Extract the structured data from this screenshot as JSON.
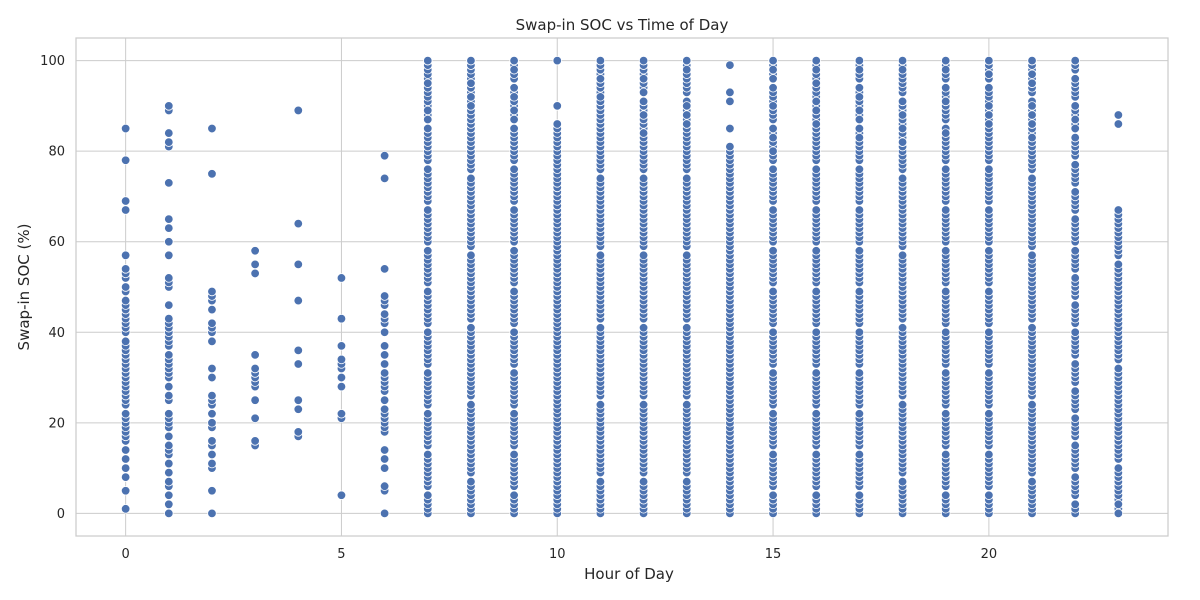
{
  "chart_data": {
    "type": "scatter",
    "title": "Swap-in SOC vs Time of Day",
    "xlabel": "Hour of Day",
    "ylabel": "Swap-in SOC (%)",
    "xlim": [
      -1.15,
      24.15
    ],
    "ylim": [
      -5,
      105
    ],
    "xticks": [
      0,
      5,
      10,
      15,
      20
    ],
    "yticks": [
      0,
      20,
      40,
      60,
      80,
      100
    ],
    "grid": true,
    "marker_color": "#4c72b0",
    "marker_edge": "#ffffff",
    "points_by_hour": [
      {
        "hour": 0,
        "soc": [
          1,
          5,
          8,
          10,
          12,
          14,
          16,
          17,
          18,
          19,
          20,
          21,
          22,
          24,
          25,
          26,
          27,
          28,
          29,
          30,
          31,
          32,
          33,
          34,
          35,
          36,
          37,
          38,
          40,
          41,
          42,
          43,
          44,
          45,
          46,
          47,
          49,
          50,
          52,
          53,
          54,
          57,
          67,
          69,
          78,
          85
        ]
      },
      {
        "hour": 1,
        "soc": [
          0,
          2,
          4,
          6,
          7,
          9,
          11,
          13,
          14,
          15,
          17,
          19,
          20,
          21,
          22,
          25,
          26,
          28,
          30,
          31,
          32,
          33,
          34,
          35,
          37,
          38,
          39,
          40,
          41,
          42,
          43,
          46,
          50,
          51,
          52,
          57,
          60,
          63,
          65,
          73,
          81,
          82,
          84,
          89,
          90
        ]
      },
      {
        "hour": 2,
        "soc": [
          0,
          5,
          10,
          11,
          13,
          15,
          16,
          19,
          20,
          22,
          24,
          25,
          26,
          30,
          32,
          38,
          40,
          41,
          42,
          45,
          47,
          48,
          49,
          75,
          85
        ]
      },
      {
        "hour": 3,
        "soc": [
          15,
          16,
          21,
          25,
          28,
          29,
          30,
          31,
          32,
          35,
          53,
          55,
          58
        ]
      },
      {
        "hour": 4,
        "soc": [
          17,
          18,
          23,
          25,
          33,
          36,
          47,
          55,
          64,
          89
        ]
      },
      {
        "hour": 5,
        "soc": [
          4,
          21,
          22,
          28,
          30,
          32,
          33,
          34,
          37,
          43,
          52
        ]
      },
      {
        "hour": 6,
        "soc": [
          0,
          5,
          6,
          10,
          12,
          14,
          18,
          19,
          20,
          21,
          22,
          23,
          25,
          27,
          28,
          29,
          30,
          31,
          33,
          35,
          37,
          40,
          42,
          43,
          44,
          46,
          47,
          48,
          54,
          74,
          79
        ]
      },
      {
        "hour": 7,
        "dense": true,
        "min": 0,
        "max": 100,
        "count": 90,
        "extra": [
          85,
          87,
          89,
          95,
          100
        ]
      },
      {
        "hour": 8,
        "dense": true,
        "min": 0,
        "max": 100,
        "count": 95,
        "extra": [
          90,
          92,
          95,
          99,
          100
        ]
      },
      {
        "hour": 9,
        "dense": true,
        "min": 0,
        "max": 100,
        "count": 90,
        "extra": [
          87,
          89,
          92,
          98,
          100
        ]
      },
      {
        "hour": 10,
        "dense": true,
        "min": 0,
        "max": 86,
        "count": 90,
        "extra": [
          90,
          100
        ]
      },
      {
        "hour": 11,
        "dense": true,
        "min": 0,
        "max": 100,
        "count": 95,
        "extra": [
          92,
          96,
          98,
          99,
          100
        ]
      },
      {
        "hour": 12,
        "dense": true,
        "min": 0,
        "max": 100,
        "count": 95,
        "extra": [
          84,
          88,
          93,
          96,
          99,
          100
        ]
      },
      {
        "hour": 13,
        "dense": true,
        "min": 0,
        "max": 100,
        "count": 95,
        "extra": [
          86,
          88,
          90,
          97,
          98,
          100
        ]
      },
      {
        "hour": 14,
        "dense": true,
        "min": 0,
        "max": 81,
        "count": 85,
        "extra": [
          85,
          91,
          93,
          99
        ]
      },
      {
        "hour": 15,
        "dense": true,
        "min": 0,
        "max": 100,
        "count": 90,
        "extra": [
          76,
          80,
          83,
          90,
          96,
          98,
          100
        ]
      },
      {
        "hour": 16,
        "dense": true,
        "min": 0,
        "max": 100,
        "count": 90,
        "extra": [
          85,
          86,
          89,
          91,
          95,
          98,
          100
        ]
      },
      {
        "hour": 17,
        "dense": true,
        "min": 0,
        "max": 100,
        "count": 90,
        "extra": [
          83,
          87,
          89,
          92,
          98,
          100
        ]
      },
      {
        "hour": 18,
        "dense": true,
        "min": 0,
        "max": 100,
        "count": 95,
        "extra": [
          82,
          85,
          88,
          90,
          91,
          98,
          100
        ]
      },
      {
        "hour": 19,
        "dense": true,
        "min": 0,
        "max": 100,
        "count": 90,
        "extra": [
          84,
          90,
          91,
          98,
          100
        ]
      },
      {
        "hour": 20,
        "dense": true,
        "min": 0,
        "max": 100,
        "count": 90,
        "extra": [
          86,
          88,
          90,
          97,
          100
        ]
      },
      {
        "hour": 21,
        "dense": true,
        "min": 0,
        "max": 100,
        "count": 95,
        "extra": [
          83,
          86,
          88,
          90,
          95,
          97,
          100
        ]
      },
      {
        "hour": 22,
        "dense": true,
        "min": 0,
        "max": 100,
        "count": 85,
        "extra": [
          83,
          85,
          87,
          90,
          100
        ]
      },
      {
        "hour": 23,
        "dense": true,
        "min": 0,
        "max": 67,
        "count": 65,
        "extra": [
          0,
          2,
          86,
          88
        ]
      }
    ]
  }
}
